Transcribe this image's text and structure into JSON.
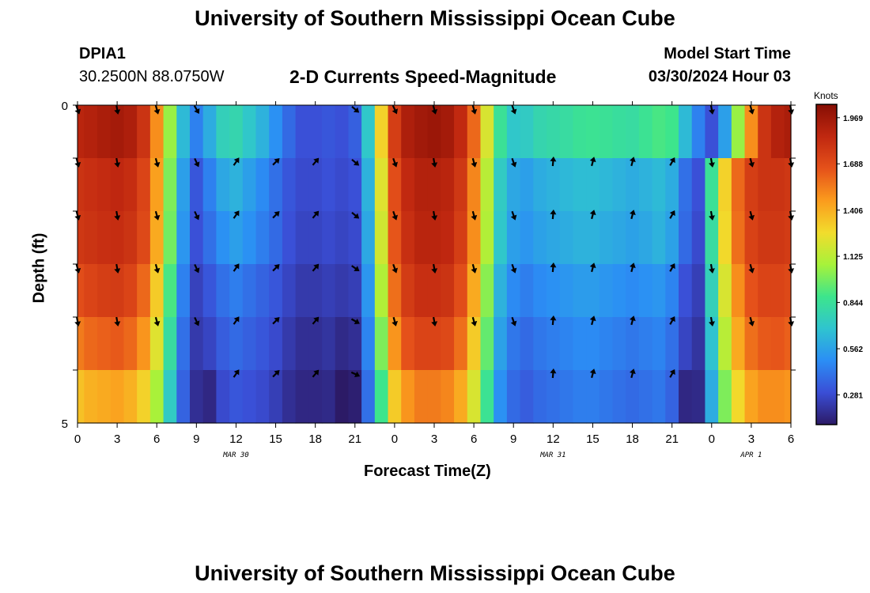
{
  "header": {
    "title": "University of Southern Mississippi Ocean Cube",
    "station_id": "DPIA1",
    "station_coords": "30.2500N  88.0750W",
    "plot_title": "2-D Currents Speed-Magnitude",
    "model_start_label": "Model Start Time",
    "model_start_value": "03/30/2024 Hour 03"
  },
  "footer": {
    "title": "University of Southern Mississippi Ocean Cube"
  },
  "chart_data": {
    "type": "heatmap",
    "title": "2-D Currents Speed-Magnitude",
    "xlabel": "Forecast Time(Z)",
    "ylabel": "Depth (ft)",
    "xlim": [
      0,
      54
    ],
    "ylim": [
      0,
      5
    ],
    "x_tick_values": [
      0,
      3,
      6,
      9,
      12,
      15,
      18,
      21,
      24,
      27,
      30,
      33,
      36,
      39,
      42,
      45,
      48,
      51,
      54
    ],
    "x_tick_labels": [
      "0",
      "3",
      "6",
      "9",
      "12",
      "15",
      "18",
      "21",
      "0",
      "3",
      "6",
      "9",
      "12",
      "15",
      "18",
      "21",
      "0",
      "3",
      "6"
    ],
    "y_tick_labels": [
      "0",
      "5"
    ],
    "date_labels": [
      {
        "text": "MAR 30",
        "x": 12
      },
      {
        "text": "MAR 31",
        "x": 36
      },
      {
        "text": "APR 1",
        "x": 51
      }
    ],
    "depth_levels": [
      0,
      1,
      2,
      3,
      4,
      5
    ],
    "speed_series": [
      {
        "depth_row": 0,
        "hours": [
          0,
          1,
          2,
          3,
          4,
          5,
          6,
          7,
          8,
          9,
          10,
          11,
          12,
          13,
          14,
          15,
          16,
          17,
          18,
          19,
          20,
          21,
          22,
          23,
          24,
          25,
          26,
          27,
          28,
          29,
          30,
          31,
          32,
          33,
          34,
          35,
          36,
          37,
          38,
          39,
          40,
          41,
          42,
          43,
          44,
          45,
          46,
          47,
          48,
          49,
          50,
          51,
          52,
          53,
          54
        ],
        "values": [
          1.88,
          1.9,
          1.93,
          1.95,
          1.92,
          1.8,
          1.5,
          1.05,
          0.65,
          0.45,
          0.6,
          0.75,
          0.78,
          0.7,
          0.62,
          0.5,
          0.38,
          0.3,
          0.3,
          0.32,
          0.3,
          0.35,
          0.7,
          1.3,
          1.75,
          1.92,
          1.96,
          1.98,
          1.95,
          1.85,
          1.6,
          1.2,
          0.85,
          0.7,
          0.72,
          0.78,
          0.8,
          0.82,
          0.85,
          0.86,
          0.85,
          0.83,
          0.82,
          0.86,
          0.9,
          0.88,
          0.65,
          0.45,
          0.3,
          0.55,
          1.05,
          1.5,
          1.8,
          1.9,
          1.93
        ]
      },
      {
        "depth_row": 1,
        "hours": [
          0,
          1,
          2,
          3,
          4,
          5,
          6,
          7,
          8,
          9,
          10,
          11,
          12,
          13,
          14,
          15,
          16,
          17,
          18,
          19,
          20,
          21,
          22,
          23,
          24,
          25,
          26,
          27,
          28,
          29,
          30,
          31,
          32,
          33,
          34,
          35,
          36,
          37,
          38,
          39,
          40,
          41,
          42,
          43,
          44,
          45,
          46,
          47,
          48,
          49,
          50,
          51,
          52,
          53,
          54
        ],
        "values": [
          1.8,
          1.82,
          1.84,
          1.86,
          1.83,
          1.72,
          1.45,
          1.0,
          0.55,
          0.32,
          0.45,
          0.58,
          0.62,
          0.55,
          0.48,
          0.4,
          0.32,
          0.28,
          0.28,
          0.3,
          0.28,
          0.3,
          0.62,
          1.22,
          1.68,
          1.85,
          1.9,
          1.9,
          1.88,
          1.78,
          1.52,
          1.12,
          0.72,
          0.58,
          0.55,
          0.6,
          0.62,
          0.64,
          0.66,
          0.66,
          0.64,
          0.62,
          0.6,
          0.62,
          0.65,
          0.6,
          0.4,
          0.3,
          0.85,
          1.3,
          1.6,
          1.75,
          1.8,
          1.8,
          1.78
        ]
      },
      {
        "depth_row": 2,
        "hours": [
          0,
          1,
          2,
          3,
          4,
          5,
          6,
          7,
          8,
          9,
          10,
          11,
          12,
          13,
          14,
          15,
          16,
          17,
          18,
          19,
          20,
          21,
          22,
          23,
          24,
          25,
          26,
          27,
          28,
          29,
          30,
          31,
          32,
          33,
          34,
          35,
          36,
          37,
          38,
          39,
          40,
          41,
          42,
          43,
          44,
          45,
          46,
          47,
          48,
          49,
          50,
          51,
          52,
          53,
          54
        ],
        "values": [
          1.78,
          1.8,
          1.82,
          1.83,
          1.8,
          1.7,
          1.42,
          0.98,
          0.52,
          0.3,
          0.4,
          0.5,
          0.55,
          0.5,
          0.44,
          0.38,
          0.3,
          0.26,
          0.26,
          0.28,
          0.26,
          0.28,
          0.58,
          1.18,
          1.65,
          1.82,
          1.88,
          1.88,
          1.86,
          1.75,
          1.5,
          1.1,
          0.7,
          0.55,
          0.52,
          0.56,
          0.58,
          0.6,
          0.62,
          0.62,
          0.6,
          0.58,
          0.56,
          0.58,
          0.62,
          0.56,
          0.38,
          0.28,
          0.82,
          1.28,
          1.58,
          1.73,
          1.78,
          1.78,
          1.76
        ]
      },
      {
        "depth_row": 3,
        "hours": [
          0,
          1,
          2,
          3,
          4,
          5,
          6,
          7,
          8,
          9,
          10,
          11,
          12,
          13,
          14,
          15,
          16,
          17,
          18,
          19,
          20,
          21,
          22,
          23,
          24,
          25,
          26,
          27,
          28,
          29,
          30,
          31,
          32,
          33,
          34,
          35,
          36,
          37,
          38,
          39,
          40,
          41,
          42,
          43,
          44,
          45,
          46,
          47,
          48,
          49,
          50,
          51,
          52,
          53,
          54
        ],
        "values": [
          1.68,
          1.72,
          1.75,
          1.76,
          1.72,
          1.6,
          1.32,
          0.9,
          0.45,
          0.25,
          0.32,
          0.4,
          0.44,
          0.4,
          0.36,
          0.32,
          0.26,
          0.22,
          0.22,
          0.24,
          0.22,
          0.24,
          0.52,
          1.1,
          1.58,
          1.76,
          1.82,
          1.82,
          1.8,
          1.68,
          1.42,
          1.02,
          0.62,
          0.48,
          0.44,
          0.48,
          0.5,
          0.52,
          0.54,
          0.54,
          0.52,
          0.5,
          0.48,
          0.5,
          0.52,
          0.46,
          0.3,
          0.24,
          0.75,
          1.2,
          1.5,
          1.66,
          1.72,
          1.72,
          1.7
        ]
      },
      {
        "depth_row": 4,
        "hours": [
          0,
          1,
          2,
          3,
          4,
          5,
          6,
          7,
          8,
          9,
          10,
          11,
          12,
          13,
          14,
          15,
          16,
          17,
          18,
          19,
          20,
          21,
          22,
          23,
          24,
          25,
          26,
          27,
          28,
          29,
          30,
          31,
          32,
          33,
          34,
          35,
          36,
          37,
          38,
          39,
          40,
          41,
          42,
          43,
          44,
          45,
          46,
          47,
          48,
          49,
          50,
          51,
          52,
          53,
          54
        ],
        "values": [
          1.55,
          1.6,
          1.62,
          1.64,
          1.6,
          1.48,
          1.22,
          0.82,
          0.4,
          0.22,
          0.26,
          0.34,
          0.38,
          0.35,
          0.32,
          0.28,
          0.22,
          0.18,
          0.18,
          0.2,
          0.16,
          0.18,
          0.46,
          1.0,
          1.48,
          1.66,
          1.72,
          1.72,
          1.7,
          1.58,
          1.32,
          0.95,
          0.56,
          0.42,
          0.38,
          0.42,
          0.44,
          0.46,
          0.48,
          0.48,
          0.46,
          0.44,
          0.42,
          0.44,
          0.46,
          0.4,
          0.26,
          0.2,
          0.68,
          1.12,
          1.42,
          1.58,
          1.64,
          1.65,
          1.62
        ]
      },
      {
        "depth_row": 5,
        "hours": [
          0,
          1,
          2,
          3,
          4,
          5,
          6,
          7,
          8,
          9,
          10,
          11,
          12,
          13,
          14,
          15,
          16,
          17,
          18,
          19,
          20,
          21,
          22,
          23,
          24,
          25,
          26,
          27,
          28,
          29,
          30,
          31,
          32,
          33,
          34,
          35,
          36,
          37,
          38,
          39,
          40,
          41,
          42,
          43,
          44,
          45,
          46,
          47,
          48,
          49,
          50,
          51,
          52,
          53,
          54
        ],
        "values": [
          1.35,
          1.4,
          1.42,
          1.44,
          1.4,
          1.3,
          1.08,
          0.72,
          0.36,
          0.18,
          0.15,
          0.28,
          0.32,
          0.3,
          0.28,
          0.24,
          0.18,
          0.15,
          0.15,
          0.16,
          0.05,
          0.12,
          0.4,
          0.88,
          1.32,
          1.48,
          1.55,
          1.55,
          1.52,
          1.42,
          1.2,
          0.86,
          0.5,
          0.38,
          0.34,
          0.38,
          0.4,
          0.42,
          0.44,
          0.44,
          0.42,
          0.4,
          0.38,
          0.4,
          0.42,
          0.36,
          0.15,
          0.16,
          0.6,
          1.0,
          1.28,
          1.44,
          1.5,
          1.5,
          1.48
        ]
      }
    ],
    "direction_series": [
      {
        "depth_row": 0,
        "hours": [
          0,
          3,
          6,
          9,
          12,
          15,
          18,
          21,
          24,
          27,
          30,
          33,
          36,
          39,
          42,
          45,
          48,
          51,
          54
        ],
        "directions_deg": [
          160,
          170,
          165,
          150,
          null,
          null,
          null,
          130,
          155,
          165,
          165,
          160,
          null,
          null,
          null,
          null,
          170,
          165,
          170
        ]
      },
      {
        "depth_row": 1,
        "hours": [
          0,
          3,
          6,
          9,
          12,
          15,
          18,
          21,
          24,
          27,
          30,
          33,
          36,
          39,
          42,
          45,
          48,
          51,
          54
        ],
        "directions_deg": [
          165,
          170,
          165,
          155,
          35,
          45,
          40,
          130,
          160,
          170,
          165,
          160,
          5,
          15,
          15,
          30,
          170,
          165,
          170
        ]
      },
      {
        "depth_row": 2,
        "hours": [
          0,
          3,
          6,
          9,
          12,
          15,
          18,
          21,
          24,
          27,
          30,
          33,
          36,
          39,
          42,
          45,
          48,
          51,
          54
        ],
        "directions_deg": [
          165,
          170,
          165,
          155,
          35,
          45,
          40,
          130,
          160,
          170,
          165,
          160,
          5,
          15,
          15,
          30,
          170,
          165,
          170
        ]
      },
      {
        "depth_row": 3,
        "hours": [
          0,
          3,
          6,
          9,
          12,
          15,
          18,
          21,
          24,
          27,
          30,
          33,
          36,
          39,
          42,
          45,
          48,
          51,
          54
        ],
        "directions_deg": [
          165,
          170,
          165,
          155,
          35,
          45,
          40,
          125,
          160,
          170,
          165,
          160,
          5,
          15,
          15,
          30,
          170,
          165,
          170
        ]
      },
      {
        "depth_row": 4,
        "hours": [
          0,
          3,
          6,
          9,
          12,
          15,
          18,
          21,
          24,
          27,
          30,
          33,
          36,
          39,
          42,
          45,
          48,
          51,
          54
        ],
        "directions_deg": [
          170,
          170,
          165,
          155,
          35,
          45,
          40,
          120,
          165,
          170,
          165,
          160,
          5,
          15,
          15,
          30,
          170,
          165,
          170
        ]
      },
      {
        "depth_row": 5,
        "hours": [
          0,
          3,
          6,
          9,
          12,
          15,
          18,
          21,
          24,
          27,
          30,
          33,
          36,
          39,
          42,
          45,
          48,
          51,
          54
        ],
        "directions_deg": [
          null,
          null,
          null,
          null,
          35,
          45,
          40,
          115,
          null,
          null,
          null,
          null,
          5,
          15,
          15,
          30,
          null,
          null,
          null
        ]
      }
    ],
    "colorbar": {
      "units": "Knots",
      "range": [
        0.1,
        2.05
      ],
      "tick_labels": [
        "1.969",
        "1.688",
        "1.406",
        "1.125",
        "0.844",
        "0.562",
        "0.281"
      ],
      "tick_values": [
        1.969,
        1.688,
        1.406,
        1.125,
        0.844,
        0.562,
        0.281
      ],
      "colors": [
        "#2c1a66",
        "#3a4ed6",
        "#2b8ef5",
        "#2fc4cf",
        "#3de58c",
        "#a7f23a",
        "#f2dc2c",
        "#fb9b1d",
        "#e5511a",
        "#c02810",
        "#860e04"
      ]
    }
  }
}
